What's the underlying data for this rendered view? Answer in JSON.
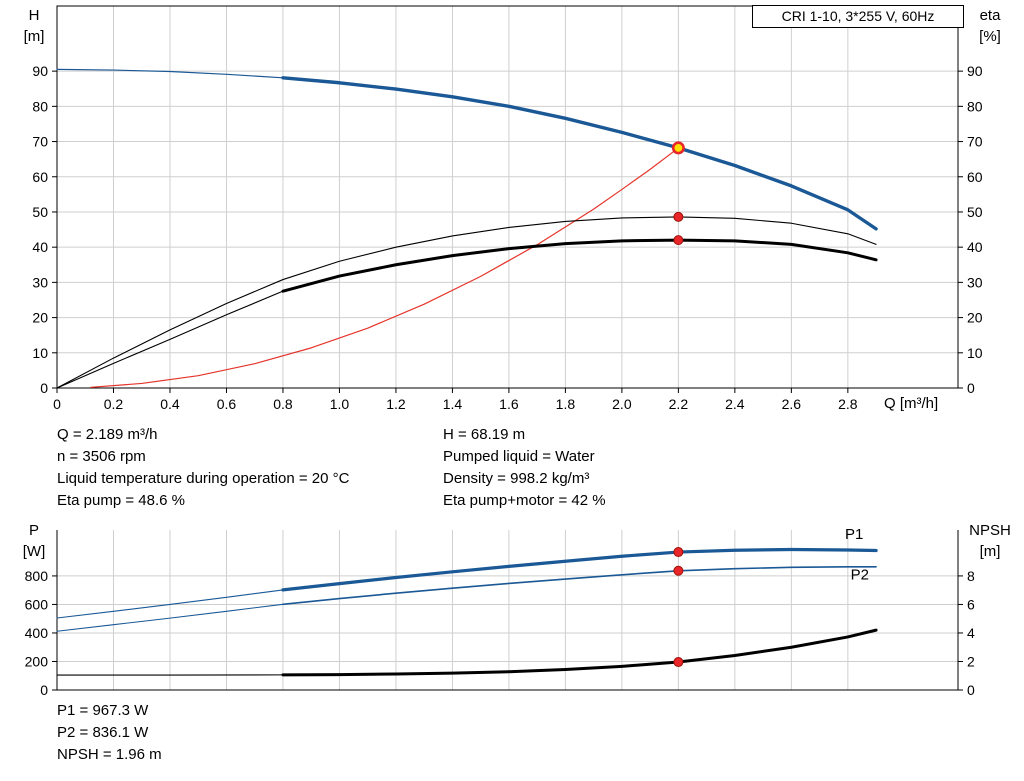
{
  "title_box": {
    "label": "CRI 1-10, 3*255 V, 60Hz"
  },
  "operating_info": {
    "rows": [
      {
        "left": "Q = 2.189 m³/h",
        "right": "H = 68.19 m"
      },
      {
        "left": "n = 3506 rpm",
        "right": "Pumped liquid = Water"
      },
      {
        "left": "Liquid temperature during operation = 20 °C",
        "right": "Density = 998.2 kg/m³"
      },
      {
        "left": "Eta pump = 48.6 %",
        "right": "Eta pump+motor = 42 %"
      }
    ]
  },
  "duty_values": {
    "lines": [
      "P1 = 967.3 W",
      "P2 = 836.1 W",
      "NPSH = 1.96 m"
    ]
  },
  "colors": {
    "curve_blue": "#1a5896",
    "curve_red": "#e5352b",
    "curve_black": "#000000",
    "marker_red": "#e8262a",
    "duty_yellow": "#ffe000",
    "grid": "#cfcfcf"
  },
  "chart_data": [
    {
      "type": "line",
      "title": "",
      "xlabel": "Q [m³/h]",
      "ylabel_left": [
        "H",
        "[m]"
      ],
      "ylabel_right": [
        "eta",
        "[%]"
      ],
      "xlim": [
        0,
        3.19
      ],
      "ylim_left": [
        0,
        108.5
      ],
      "ylim_right": [
        0,
        108.5
      ],
      "grid": true,
      "legend": "none",
      "show_xtick_labels": true,
      "xticks": [
        0,
        0.2,
        0.4,
        0.6,
        0.8,
        1.0,
        1.2,
        1.4,
        1.6,
        1.8,
        2.0,
        2.2,
        2.4,
        2.6,
        2.8
      ],
      "xtick_labels": [
        "0",
        "0.2",
        "0.4",
        "0.6",
        "0.8",
        "1.0",
        "1.2",
        "1.4",
        "1.6",
        "1.8",
        "2.0",
        "2.2",
        "2.4",
        "2.6",
        "2.8"
      ],
      "yticks_left": [
        0,
        10,
        20,
        30,
        40,
        50,
        60,
        70,
        80,
        90
      ],
      "yticks_right": [
        0,
        10,
        20,
        30,
        40,
        50,
        60,
        70,
        80,
        90
      ],
      "series": [
        {
          "name": "pump-qh-curve-extension",
          "axis": "left",
          "color": "#1a5896",
          "width": 1.2,
          "x": [
            0,
            0.2,
            0.4,
            0.6,
            0.8
          ],
          "y": [
            90.5,
            90.3,
            89.9,
            89.1,
            88.1
          ]
        },
        {
          "name": "pump-qh-curve",
          "axis": "left",
          "color": "#1a5896",
          "width": 3.4,
          "x": [
            0.8,
            1.0,
            1.2,
            1.4,
            1.6,
            1.8,
            2.0,
            2.2,
            2.4,
            2.6,
            2.8,
            2.9
          ],
          "y": [
            88.1,
            86.7,
            84.9,
            82.7,
            80.0,
            76.6,
            72.6,
            68.19,
            63.2,
            57.4,
            50.6,
            45.2
          ]
        },
        {
          "name": "system-resistance-curve",
          "axis": "left",
          "color": "#e5352b",
          "width": 1.2,
          "x": [
            0.12,
            0.3,
            0.5,
            0.7,
            0.9,
            1.1,
            1.3,
            1.5,
            1.7,
            1.9,
            2.0,
            2.1,
            2.2
          ],
          "y": [
            0.2,
            1.3,
            3.5,
            6.9,
            11.4,
            17.0,
            23.8,
            31.7,
            40.7,
            50.8,
            56.4,
            62.1,
            68.19
          ]
        },
        {
          "name": "eta-pump-curve",
          "axis": "right",
          "color": "#000000",
          "width": 1.1,
          "x": [
            0,
            0.2,
            0.4,
            0.6,
            0.8,
            1.0,
            1.2,
            1.4,
            1.6,
            1.8,
            2.0,
            2.2,
            2.4,
            2.6,
            2.8,
            2.9
          ],
          "y": [
            0,
            8.5,
            16.5,
            24.0,
            30.8,
            36.0,
            40.0,
            43.2,
            45.6,
            47.3,
            48.3,
            48.6,
            48.2,
            46.8,
            43.8,
            40.8
          ]
        },
        {
          "name": "eta-pump-motor-curve-extension",
          "axis": "right",
          "color": "#000000",
          "width": 1.1,
          "x": [
            0,
            0.2,
            0.4,
            0.6,
            0.8
          ],
          "y": [
            0,
            7.0,
            13.8,
            20.8,
            27.5
          ]
        },
        {
          "name": "eta-pump-motor-curve",
          "axis": "right",
          "color": "#000000",
          "width": 3,
          "x": [
            0.8,
            1.0,
            1.2,
            1.4,
            1.6,
            1.8,
            2.0,
            2.2,
            2.4,
            2.6,
            2.8,
            2.9
          ],
          "y": [
            27.5,
            31.8,
            35.0,
            37.6,
            39.6,
            41.0,
            41.8,
            42.0,
            41.8,
            40.8,
            38.4,
            36.4
          ]
        }
      ],
      "markers": [
        {
          "name": "eta-pump-duty-point",
          "x": 2.2,
          "y": 48.6,
          "axis": "right",
          "fill": "#e8262a",
          "stroke": "#9c1006",
          "stroke_width": 1,
          "r": 4.5
        },
        {
          "name": "eta-pump-motor-duty-point",
          "x": 2.2,
          "y": 42.0,
          "axis": "right",
          "fill": "#e8262a",
          "stroke": "#9c1006",
          "stroke_width": 1,
          "r": 4.5
        },
        {
          "name": "qh-duty-point",
          "x": 2.2,
          "y": 68.19,
          "axis": "left",
          "fill": "#ffe000",
          "stroke": "#e8262a",
          "stroke_width": 2.6,
          "r": 5.2
        }
      ],
      "labels": []
    },
    {
      "type": "line",
      "title": "",
      "xlabel": "",
      "ylabel_left": [
        "P",
        "[W]"
      ],
      "ylabel_right": [
        "NPSH",
        "[m]"
      ],
      "xlim": [
        0,
        3.19
      ],
      "ylim_left": [
        0,
        1122
      ],
      "ylim_right": [
        0,
        11.22
      ],
      "grid": true,
      "legend": "none",
      "show_xtick_labels": false,
      "xticks": [
        0,
        0.2,
        0.4,
        0.6,
        0.8,
        1.0,
        1.2,
        1.4,
        1.6,
        1.8,
        2.0,
        2.2,
        2.4,
        2.6,
        2.8
      ],
      "xtick_labels": [],
      "yticks_left": [
        0,
        200,
        400,
        600,
        800
      ],
      "yticks_right": [
        0,
        2,
        4,
        6,
        8
      ],
      "series": [
        {
          "name": "p1-curve-extension",
          "axis": "left",
          "color": "#1a5896",
          "width": 1.1,
          "x": [
            0,
            0.2,
            0.4,
            0.6,
            0.8
          ],
          "y": [
            505,
            552,
            600,
            650,
            702
          ]
        },
        {
          "name": "p1-curve",
          "axis": "left",
          "color": "#1a5896",
          "width": 3.2,
          "x": [
            0.8,
            1.0,
            1.2,
            1.4,
            1.6,
            1.8,
            2.0,
            2.2,
            2.4,
            2.6,
            2.8,
            2.9
          ],
          "y": [
            702,
            746,
            789,
            829,
            867,
            903,
            938,
            967.3,
            980,
            985,
            982,
            978
          ]
        },
        {
          "name": "p2-curve-extension",
          "axis": "left",
          "color": "#1a5896",
          "width": 1.1,
          "x": [
            0,
            0.2,
            0.4,
            0.6,
            0.8
          ],
          "y": [
            412,
            458,
            504,
            552,
            601
          ]
        },
        {
          "name": "p2-curve",
          "axis": "left",
          "color": "#1a5896",
          "width": 1.6,
          "x": [
            0.8,
            1.0,
            1.2,
            1.4,
            1.6,
            1.8,
            2.0,
            2.2,
            2.4,
            2.6,
            2.8,
            2.9
          ],
          "y": [
            601,
            641,
            679,
            714,
            747,
            778,
            808,
            836.1,
            851,
            860,
            864,
            864
          ]
        },
        {
          "name": "npsh-curve-extension",
          "axis": "right",
          "color": "#000000",
          "width": 1.1,
          "x": [
            0,
            0.4,
            0.8
          ],
          "y": [
            1.05,
            1.05,
            1.06
          ]
        },
        {
          "name": "npsh-curve",
          "axis": "right",
          "color": "#000000",
          "width": 3,
          "x": [
            0.8,
            1.0,
            1.2,
            1.4,
            1.6,
            1.8,
            2.0,
            2.2,
            2.4,
            2.6,
            2.8,
            2.9
          ],
          "y": [
            1.06,
            1.08,
            1.12,
            1.18,
            1.28,
            1.44,
            1.66,
            1.96,
            2.42,
            3.0,
            3.72,
            4.2
          ]
        }
      ],
      "markers": [
        {
          "name": "p1-duty-point",
          "x": 2.2,
          "y": 967.3,
          "axis": "left",
          "fill": "#e8262a",
          "stroke": "#9c1006",
          "stroke_width": 1,
          "r": 4.5
        },
        {
          "name": "p2-duty-point",
          "x": 2.2,
          "y": 836.1,
          "axis": "left",
          "fill": "#e8262a",
          "stroke": "#9c1006",
          "stroke_width": 1,
          "r": 4.5
        },
        {
          "name": "npsh-duty-point",
          "x": 2.2,
          "y": 1.96,
          "axis": "right",
          "fill": "#e8262a",
          "stroke": "#9c1006",
          "stroke_width": 1,
          "r": 4.5
        }
      ],
      "labels": [
        {
          "text": "P1",
          "x": 2.79,
          "y": 1060,
          "axis": "left",
          "color": "#1a5896"
        },
        {
          "text": "P2",
          "x": 2.81,
          "y": 775,
          "axis": "left",
          "color": "#1a5896"
        }
      ]
    }
  ]
}
